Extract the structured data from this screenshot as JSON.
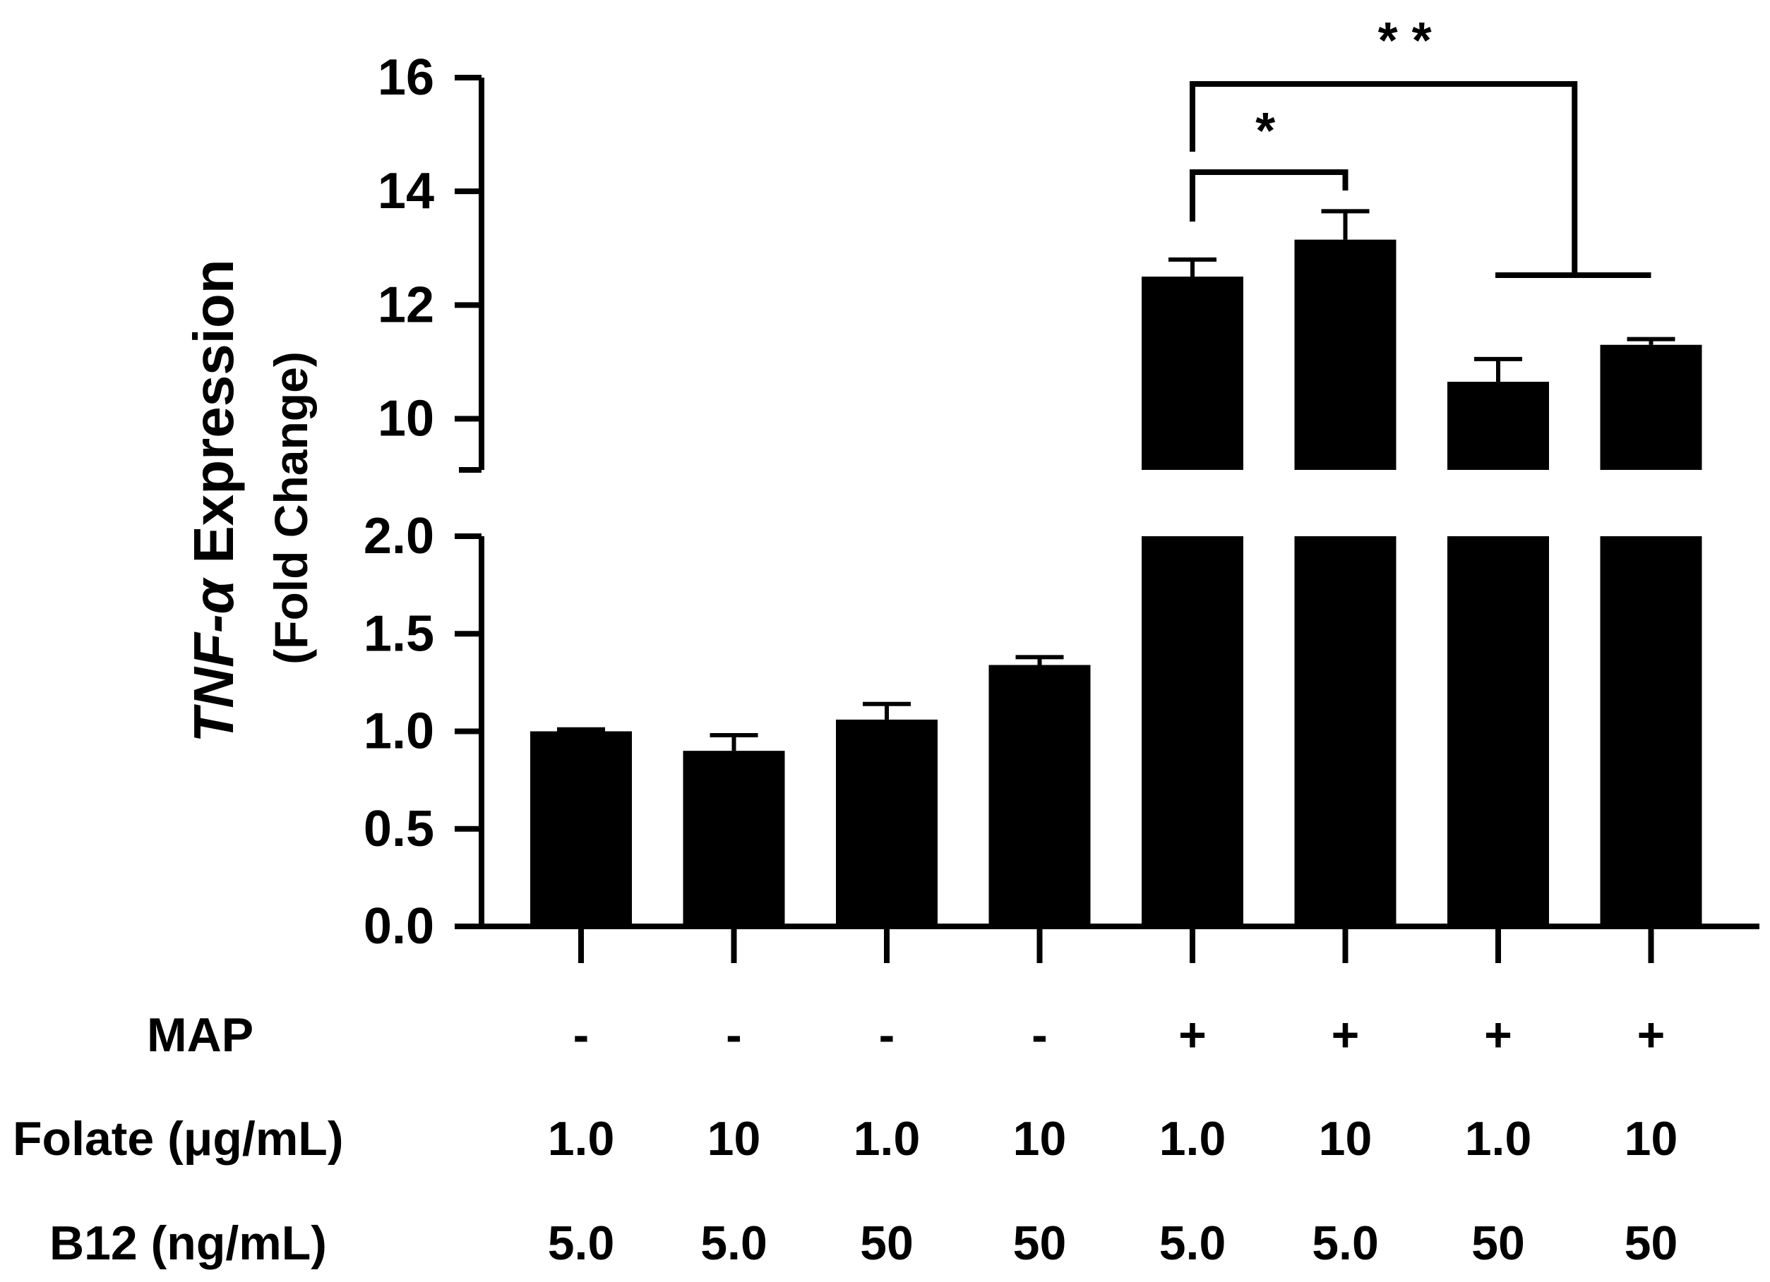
{
  "chart_data": {
    "type": "bar",
    "ylabel_italic": "TNF-α",
    "ylabel_rest": " Expression",
    "ylabel_line2": "(Fold Change)",
    "axis_break": {
      "lower_range": [
        0,
        2.0
      ],
      "upper_range": [
        9.1,
        16
      ]
    },
    "lower_ticks": [
      "0.0",
      "0.5",
      "1.0",
      "1.5",
      "2.0"
    ],
    "upper_ticks": [
      "10",
      "12",
      "14",
      "16"
    ],
    "rows": [
      {
        "label": "MAP",
        "values": [
          "-",
          "-",
          "-",
          "-",
          "+",
          "+",
          "+",
          "+"
        ]
      },
      {
        "label": "Folate (μg/mL)",
        "values": [
          "1.0",
          "10",
          "1.0",
          "10",
          "1.0",
          "10",
          "1.0",
          "10"
        ]
      },
      {
        "label": "B12 (ng/mL)",
        "values": [
          "5.0",
          "5.0",
          "50",
          "50",
          "5.0",
          "5.0",
          "50",
          "50"
        ]
      }
    ],
    "values": [
      1.0,
      0.9,
      1.06,
      1.34,
      12.5,
      13.15,
      10.65,
      11.3
    ],
    "errors": [
      0.01,
      0.08,
      0.08,
      0.04,
      0.3,
      0.5,
      0.4,
      0.1
    ],
    "significance": [
      {
        "label": "*",
        "from": 4,
        "to": 5
      },
      {
        "label": "* *",
        "from": 4,
        "to": [
          6,
          7
        ]
      }
    ]
  }
}
